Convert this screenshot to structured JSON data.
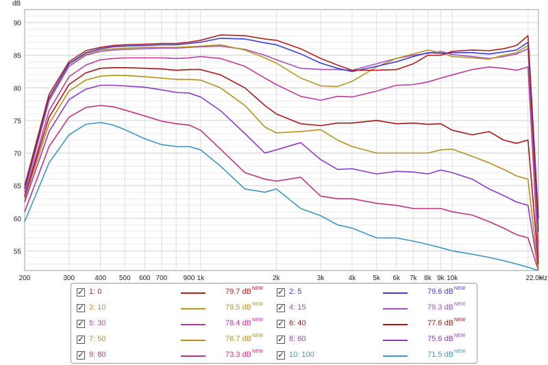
{
  "chart_data": {
    "type": "line",
    "y_unit": "dB",
    "x_unit": "Hz",
    "x_scale": "log",
    "xlim": [
      200,
      22000
    ],
    "ylim": [
      52,
      92
    ],
    "grid": true,
    "x_ticks": [
      "200",
      "300",
      "400",
      "500",
      "600",
      "700",
      "900",
      "1k",
      "2k",
      "3k",
      "4k",
      "5k",
      "6k",
      "7k",
      "8k",
      "9k",
      "10k",
      "22.0k"
    ],
    "y_ticks": [
      "55",
      "60",
      "65",
      "70",
      "75",
      "80",
      "85",
      "90"
    ],
    "x_axis_unit_label": "Hz",
    "y_axis_unit_label": "dB",
    "legend_position": "bottom",
    "x": [
      200,
      250,
      300,
      350,
      400,
      450,
      500,
      600,
      700,
      800,
      900,
      1000,
      1200,
      1500,
      1800,
      2000,
      2500,
      3000,
      3500,
      4000,
      5000,
      6000,
      7000,
      8000,
      9000,
      10000,
      12000,
      14000,
      16000,
      18000,
      20000,
      22000
    ],
    "series": [
      {
        "name": "1: 0",
        "color": "#b41c1c",
        "value_label": "79.7 dB",
        "values": [
          65,
          79,
          84,
          85.7,
          86.2,
          86.5,
          86.6,
          86.7,
          86.8,
          86.8,
          87,
          87.3,
          88.1,
          88,
          87.5,
          87.3,
          86,
          84.5,
          83.5,
          82.7,
          82.7,
          82.8,
          83.7,
          85,
          85,
          85.6,
          85.8,
          85.7,
          86,
          86.5,
          88,
          60
        ]
      },
      {
        "name": "2: 5",
        "color": "#3a3ad8",
        "value_label": "79.6 dB",
        "values": [
          64.5,
          78.5,
          83.7,
          85.4,
          86,
          86.3,
          86.4,
          86.5,
          86.6,
          86.6,
          86.8,
          87,
          87.6,
          87.5,
          86.9,
          86.6,
          85.2,
          83.8,
          83,
          82.5,
          83.3,
          84,
          84.8,
          85.4,
          85.3,
          85.4,
          85.4,
          85.2,
          85.5,
          85.8,
          87,
          58
        ]
      },
      {
        "name": "3: 10",
        "color": "#b8961e",
        "value_label": "79.5 dB",
        "values": [
          64.3,
          78.3,
          83.6,
          85.2,
          85.8,
          86,
          86.1,
          86.2,
          86.2,
          86.2,
          86.3,
          86.4,
          86.6,
          85.8,
          84.6,
          83.8,
          81.5,
          80.3,
          80.2,
          81,
          83.2,
          84.5,
          85.2,
          85.8,
          85.4,
          84.8,
          84.6,
          84.4,
          85,
          85.4,
          86.5,
          57
        ]
      },
      {
        "name": "4: 15",
        "color": "#a14fc8",
        "value_label": "79.3 dB",
        "values": [
          64,
          78,
          83.3,
          85,
          85.6,
          85.8,
          85.9,
          86,
          86.1,
          86.1,
          86.2,
          86.3,
          86.4,
          85.9,
          85,
          84.3,
          83,
          82.8,
          82.8,
          82.7,
          83.7,
          84.5,
          85,
          85.3,
          85.6,
          85.1,
          84.8,
          84.5,
          84.8,
          85.2,
          86,
          56
        ]
      },
      {
        "name": "5: 30",
        "color": "#c2389e",
        "value_label": "78.4 dB",
        "values": [
          63.5,
          76.5,
          81.7,
          83.5,
          84.3,
          84.5,
          84.6,
          84.6,
          84.6,
          84.5,
          84.6,
          84.8,
          84.5,
          83.3,
          81.5,
          80.5,
          78.7,
          78.1,
          78.7,
          78.6,
          79.5,
          80.4,
          80.5,
          80.9,
          81.5,
          82,
          82.8,
          83.2,
          83,
          82.7,
          83.2,
          54
        ]
      },
      {
        "name": "6: 40",
        "color": "#a81414",
        "value_label": "77.6 dB",
        "values": [
          63.3,
          75.5,
          80.5,
          82.3,
          83,
          83.1,
          83.1,
          83,
          82.9,
          82.7,
          82.8,
          82.8,
          82,
          80,
          77.3,
          76,
          74.5,
          74.2,
          74.6,
          74.6,
          75,
          74.5,
          74.6,
          74.4,
          74.5,
          73.5,
          72.8,
          73.3,
          72,
          71.5,
          72,
          53
        ]
      },
      {
        "name": "7: 50",
        "color": "#b58f16",
        "value_label": "76.7 dB",
        "values": [
          63,
          74.5,
          79.5,
          81.2,
          81.8,
          81.9,
          81.9,
          81.7,
          81.5,
          81.3,
          81.3,
          81.2,
          80,
          77.3,
          74,
          73.1,
          73.3,
          73.6,
          72,
          71,
          70,
          70,
          70,
          70,
          70.5,
          70.6,
          69.5,
          68.5,
          67.5,
          66.5,
          66,
          52
        ]
      },
      {
        "name": "8: 60",
        "color": "#8e39c8",
        "value_label": "75.6 dB",
        "values": [
          62.5,
          73.3,
          78.2,
          79.8,
          80.4,
          80.4,
          80.3,
          80.1,
          79.7,
          79.3,
          79.2,
          78.6,
          76.5,
          73,
          70,
          70.5,
          71.6,
          69,
          67.5,
          67.6,
          66.8,
          67.2,
          67.1,
          66.8,
          67.4,
          67,
          66,
          64.5,
          63.5,
          62.5,
          62,
          52
        ]
      },
      {
        "name": "9: 80",
        "color": "#c2307f",
        "value_label": "73.3 dB",
        "values": [
          61,
          71,
          75.5,
          77,
          77.3,
          77.1,
          76.6,
          75.7,
          74.9,
          74.5,
          74.3,
          73.5,
          70.6,
          67,
          66,
          65.7,
          66.3,
          63.4,
          63,
          63,
          62.3,
          62,
          61.5,
          61.5,
          61.5,
          61,
          60.5,
          59.5,
          58.5,
          57.5,
          57,
          52
        ]
      },
      {
        "name": "10: 100",
        "color": "#3a97bf",
        "value_label": "71.5 dB",
        "values": [
          59.5,
          68.5,
          72.8,
          74.4,
          74.7,
          74.3,
          73.6,
          72.2,
          71.3,
          71,
          71,
          70.5,
          68,
          64.5,
          64,
          64.5,
          61.5,
          60.4,
          59,
          58.5,
          57,
          57,
          56.5,
          56,
          55.5,
          55,
          54.5,
          54,
          53.5,
          53,
          52.5,
          52
        ]
      }
    ]
  },
  "legend_rows": [
    {
      "a": 0,
      "b": 1
    },
    {
      "a": 2,
      "b": 3
    },
    {
      "a": 4,
      "b": 5
    },
    {
      "a": 6,
      "b": 7
    },
    {
      "a": 8,
      "b": 9
    }
  ],
  "new_badge": "NEW"
}
